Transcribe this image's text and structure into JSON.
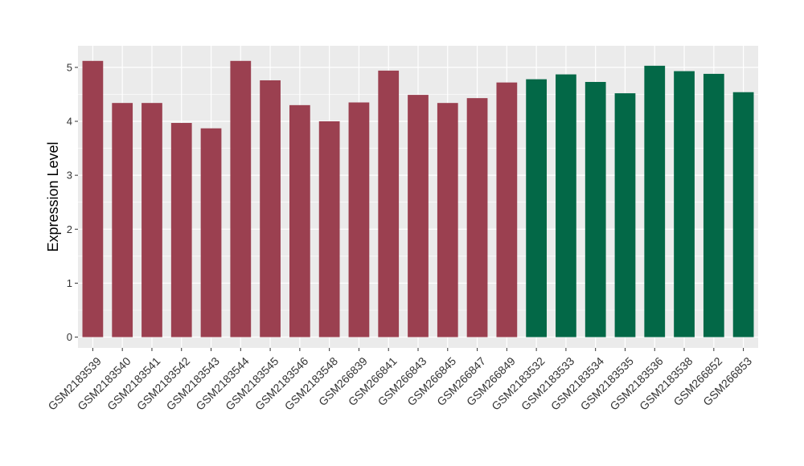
{
  "chart_data": {
    "type": "bar",
    "title": "",
    "xlabel": "",
    "ylabel": "Expression Level",
    "ylim": [
      -0.2,
      5.4
    ],
    "yticks": [
      0,
      1,
      2,
      3,
      4,
      5
    ],
    "grid": true,
    "legend": "none",
    "colors": {
      "group1": "#9b4050",
      "group2": "#036847",
      "panel_bg": "#ebebeb",
      "grid": "#ffffff"
    },
    "categories": [
      "GSM2183539",
      "GSM2183540",
      "GSM2183541",
      "GSM2183542",
      "GSM2183543",
      "GSM2183544",
      "GSM2183545",
      "GSM2183546",
      "GSM2183548",
      "GSM266839",
      "GSM266841",
      "GSM266843",
      "GSM266845",
      "GSM266847",
      "GSM266849",
      "GSM2183532",
      "GSM2183533",
      "GSM2183534",
      "GSM2183535",
      "GSM2183536",
      "GSM2183538",
      "GSM266852",
      "GSM266853"
    ],
    "values": [
      5.12,
      4.34,
      4.34,
      3.97,
      3.87,
      5.12,
      4.76,
      4.3,
      4.0,
      4.35,
      4.94,
      4.49,
      4.34,
      4.43,
      4.72,
      4.78,
      4.87,
      4.73,
      4.52,
      5.03,
      4.93,
      4.88,
      4.54
    ],
    "groups": [
      "group1",
      "group1",
      "group1",
      "group1",
      "group1",
      "group1",
      "group1",
      "group1",
      "group1",
      "group1",
      "group1",
      "group1",
      "group1",
      "group1",
      "group1",
      "group2",
      "group2",
      "group2",
      "group2",
      "group2",
      "group2",
      "group2",
      "group2"
    ]
  }
}
